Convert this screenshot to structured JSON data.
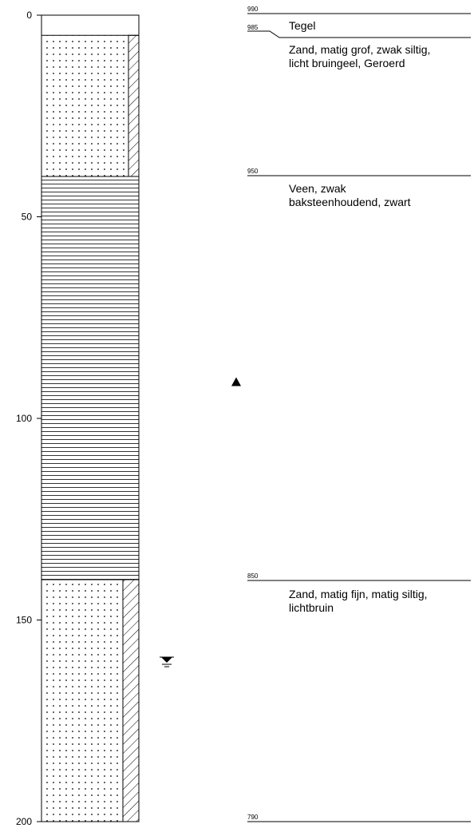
{
  "borehole_log": {
    "depth_unit": "cm",
    "depth_axis": {
      "min": 0,
      "max": 200,
      "ticks": [
        "0",
        "50",
        "100",
        "150",
        "200"
      ]
    },
    "layers": [
      {
        "top": 0,
        "bottom": 5,
        "pattern": "blank",
        "elevation_top": "990",
        "description": [
          "Tegel"
        ]
      },
      {
        "top": 5,
        "bottom": 40,
        "pattern": "sand-dots",
        "side_hatch": "narrow",
        "elevation_top": "985",
        "description": [
          "Zand, matig grof, zwak siltig,",
          "licht bruingeel, Geroerd"
        ]
      },
      {
        "top": 40,
        "bottom": 140,
        "pattern": "peat-lines",
        "elevation_top": "950",
        "description": [
          "Veen, zwak",
          "baksteenhoudend, zwart"
        ]
      },
      {
        "top": 140,
        "bottom": 200,
        "pattern": "sand-dots",
        "side_hatch": "wide",
        "elevation_top": "850",
        "description": [
          "Zand, matig fijn, matig siltig,",
          "lichtbruin"
        ]
      }
    ],
    "bottom_elevation": "790",
    "markers": [
      {
        "type": "triangle-up",
        "depth": 91,
        "icon": "triangle-marker-icon"
      },
      {
        "type": "groundwater-level",
        "depth": 160,
        "icon": "groundwater-icon"
      }
    ],
    "colors": {
      "line": "#000000",
      "background": "#ffffff"
    }
  }
}
